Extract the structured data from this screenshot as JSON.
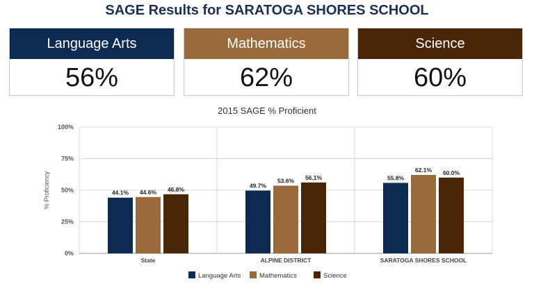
{
  "page_title": "SAGE Results for SARATOGA SHORES SCHOOL",
  "cards": [
    {
      "label": "Language Arts",
      "value": "56%",
      "color": "#0d2a52"
    },
    {
      "label": "Mathematics",
      "value": "62%",
      "color": "#9a6a3b"
    },
    {
      "label": "Science",
      "value": "60%",
      "color": "#4a2506"
    }
  ],
  "chart_data": {
    "type": "bar",
    "title": "2015 SAGE % Proficient",
    "ylabel": "% Proficiency",
    "xlabel": "",
    "ylim": [
      0,
      100
    ],
    "yticks": [
      "0%",
      "25%",
      "50%",
      "75%",
      "100%"
    ],
    "grid": true,
    "legend_position": "bottom",
    "categories": [
      "State",
      "ALPINE DISTRICT",
      "SARATOGA SHORES SCHOOL"
    ],
    "series": [
      {
        "name": "Language Arts",
        "color": "#0d2a52",
        "values": [
          44.1,
          49.7,
          55.8
        ],
        "labels": [
          "44.1%",
          "49.7%",
          "55.8%"
        ]
      },
      {
        "name": "Mathematics",
        "color": "#9a6a3b",
        "values": [
          44.6,
          53.6,
          62.1
        ],
        "labels": [
          "44.6%",
          "53.6%",
          "62.1%"
        ]
      },
      {
        "name": "Science",
        "color": "#4a2506",
        "values": [
          46.8,
          56.1,
          60.0
        ],
        "labels": [
          "46.8%",
          "56.1%",
          "60.0%"
        ]
      }
    ]
  }
}
